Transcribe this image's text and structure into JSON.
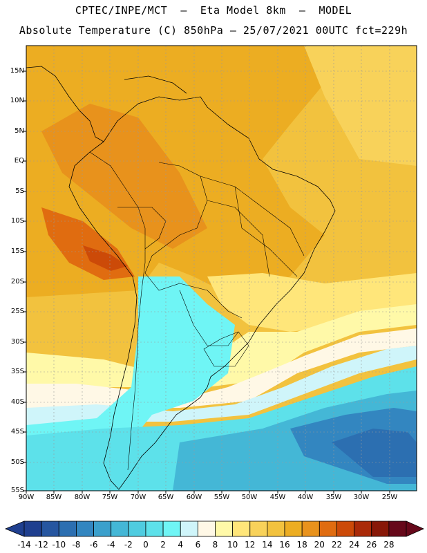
{
  "title_line1": "CPTEC/INPE/MCT  –  Eta Model 8km  –  MODEL",
  "title_line2": "Absolute Temperature (C) 850hPa – 25/07/2021 00UTC fct=229h",
  "lat_labels": [
    "15N",
    "10N",
    "5N",
    "EQ",
    "5S",
    "10S",
    "15S",
    "20S",
    "25S",
    "30S",
    "35S",
    "40S",
    "45S",
    "50S",
    "55S"
  ],
  "lon_labels": [
    "90W",
    "85W",
    "80W",
    "75W",
    "70W",
    "65W",
    "60W",
    "55W",
    "50W",
    "45W",
    "40W",
    "35W",
    "30W",
    "25W"
  ],
  "colorbar": {
    "labels": [
      "-14",
      "-12",
      "-10",
      "-8",
      "-6",
      "-4",
      "-2",
      "0",
      "2",
      "4",
      "6",
      "8",
      "10",
      "12",
      "14",
      "16",
      "18",
      "20",
      "22",
      "24",
      "26",
      "28"
    ],
    "colors": [
      "#1f3f8f",
      "#2656a0",
      "#2c6fb1",
      "#3386c0",
      "#3ba0cc",
      "#44b7d6",
      "#4fcce0",
      "#5de1ea",
      "#6ff5f5",
      "#cff5fa",
      "#fff8e6",
      "#fff9a8",
      "#ffe67a",
      "#f8d25a",
      "#f2c23e",
      "#ecad22",
      "#e8921c",
      "#e06c10",
      "#cc4a08",
      "#aa2a08",
      "#881808",
      "#66081a"
    ]
  }
}
